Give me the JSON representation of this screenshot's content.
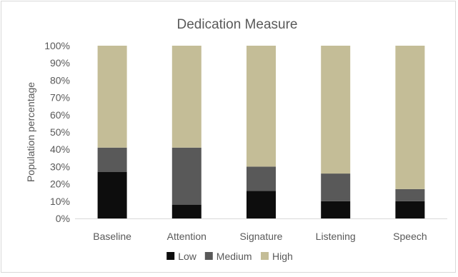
{
  "chart_data": {
    "type": "bar",
    "stacked": true,
    "title": "Dedication Measure",
    "ylabel": "Population percentage",
    "xlabel": "",
    "categories": [
      "Baseline",
      "Attention",
      "Signature",
      "Listening",
      "Speech"
    ],
    "ylim": [
      0,
      100
    ],
    "yticks": [
      "0%",
      "10%",
      "20%",
      "30%",
      "40%",
      "50%",
      "60%",
      "70%",
      "80%",
      "90%",
      "100%"
    ],
    "series": [
      {
        "name": "Low",
        "color": "#0d0d0d",
        "values": [
          27,
          8,
          16,
          10,
          10
        ]
      },
      {
        "name": "Medium",
        "color": "#595959",
        "values": [
          14,
          33,
          14,
          16,
          7
        ]
      },
      {
        "name": "High",
        "color": "#c4bd97",
        "values": [
          59,
          59,
          70,
          74,
          83
        ]
      }
    ],
    "grid": false,
    "legend_position": "bottom"
  }
}
